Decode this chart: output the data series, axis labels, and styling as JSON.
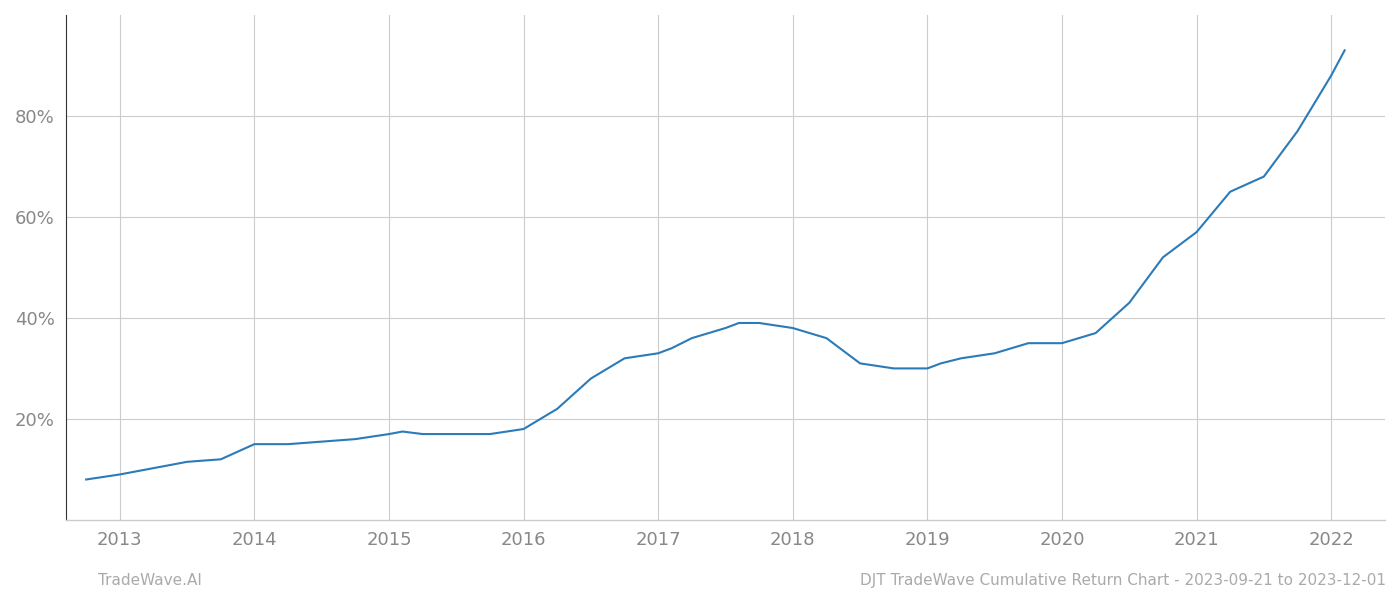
{
  "x_values": [
    2012.75,
    2013.0,
    2013.2,
    2013.5,
    2013.75,
    2014.0,
    2014.25,
    2014.5,
    2014.75,
    2015.0,
    2015.1,
    2015.25,
    2015.5,
    2015.75,
    2016.0,
    2016.25,
    2016.5,
    2016.75,
    2017.0,
    2017.1,
    2017.25,
    2017.5,
    2017.6,
    2017.75,
    2018.0,
    2018.25,
    2018.5,
    2018.75,
    2019.0,
    2019.1,
    2019.25,
    2019.5,
    2019.75,
    2020.0,
    2020.25,
    2020.5,
    2020.75,
    2021.0,
    2021.25,
    2021.5,
    2021.75,
    2022.0,
    2022.1
  ],
  "y_values": [
    8,
    9,
    10,
    11.5,
    12,
    15,
    15,
    15.5,
    16,
    17,
    17.5,
    17,
    17,
    17,
    18,
    22,
    28,
    32,
    33,
    34,
    36,
    38,
    39,
    39,
    38,
    36,
    31,
    30,
    30,
    31,
    32,
    33,
    35,
    35,
    37,
    43,
    52,
    57,
    65,
    68,
    77,
    88,
    93
  ],
  "line_color": "#2b7bb9",
  "line_width": 1.5,
  "background_color": "#ffffff",
  "grid_color": "#cccccc",
  "yticks": [
    20,
    40,
    60,
    80
  ],
  "ylim": [
    0,
    100
  ],
  "xlim": [
    2012.6,
    2022.4
  ],
  "xtick_years": [
    2013,
    2014,
    2015,
    2016,
    2017,
    2018,
    2019,
    2020,
    2021,
    2022
  ],
  "footer_left": "TradeWave.AI",
  "footer_right": "DJT TradeWave Cumulative Return Chart - 2023-09-21 to 2023-12-01",
  "footer_color": "#aaaaaa",
  "footer_fontsize": 11,
  "tick_label_color": "#888888",
  "tick_fontsize": 13,
  "spine_color": "#cccccc",
  "left_spine_color": "#333333"
}
